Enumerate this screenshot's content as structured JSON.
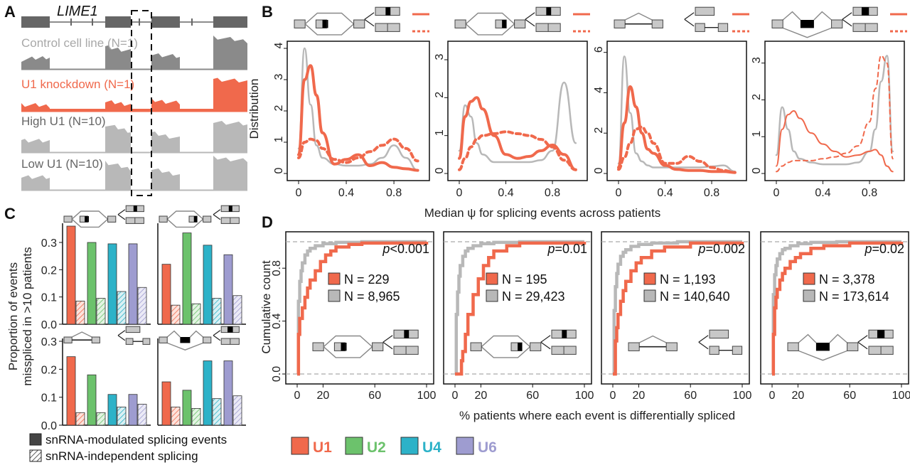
{
  "panels": {
    "A": "A",
    "B": "B",
    "C": "C",
    "D": "D"
  },
  "colors": {
    "U1": "#f0694c",
    "U2": "#6cc26c",
    "U4": "#2db2c8",
    "U6": "#9e9cd0",
    "gray_light": "#b8b8b8",
    "gray_dark": "#8a8a8a",
    "exon": "#666666"
  },
  "panelA": {
    "gene": "LIME1",
    "tracks": [
      {
        "label": "Control cell line (N=1)",
        "color": "#8a8a8a",
        "text_color": "#a8a8a8"
      },
      {
        "label": "U1 knockdown (N=1)",
        "color": "#f0694c",
        "text_color": "#f0694c"
      },
      {
        "label": "High U1 (N=10)",
        "color": "#b8b8b8",
        "text_color": "#666666"
      },
      {
        "label": "Low U1 (N=10)",
        "color": "#b8b8b8",
        "text_color": "#666666"
      }
    ]
  },
  "panelB": {
    "xlabel": "Median ψ for splicing events across patients",
    "ylabel": "Distribution",
    "xticks": [
      "0",
      "0.4",
      "0.8"
    ],
    "event_types": [
      "cassette-exon",
      "alt-5prime-site",
      "retained-intron",
      "mutually-exclusive"
    ]
  },
  "panelC": {
    "ylabel_line1": "Proportion of events",
    "ylabel_line2": "misspliced in >10 patients",
    "legend": [
      "snRNA-modulated splicing events",
      "snRNA-independent splicing"
    ]
  },
  "panelD": {
    "xlabel": "% patients where each event is differentially spliced",
    "ylabel": "Cumulative count",
    "xticks": [
      "0",
      "20",
      "60",
      "100"
    ],
    "yticks": [
      "0.0",
      "0.4",
      "0.8"
    ]
  },
  "snrna_legend": [
    "U1",
    "U2",
    "U4",
    "U6"
  ],
  "chart_data": [
    {
      "type": "line",
      "panel": "B1",
      "x": [
        0,
        0.05,
        0.1,
        0.15,
        0.2,
        0.3,
        0.4,
        0.5,
        0.6,
        0.7,
        0.8,
        0.9,
        1.0
      ],
      "ylim": [
        0,
        4
      ],
      "yticks": [
        "0",
        "1",
        "2",
        "3",
        "4"
      ],
      "series": [
        {
          "style": "gray",
          "values": [
            0.8,
            4.0,
            2.2,
            0.9,
            0.5,
            0.3,
            0.25,
            0.25,
            0.3,
            0.5,
            0.9,
            0.5,
            0.1
          ]
        },
        {
          "style": "solid",
          "values": [
            0.6,
            3.0,
            3.45,
            2.5,
            1.3,
            0.3,
            0.45,
            0.6,
            0.25,
            0.35,
            0.2,
            0.15,
            0.1
          ]
        },
        {
          "style": "dashed",
          "values": [
            0.5,
            1.0,
            1.1,
            1.05,
            0.8,
            0.45,
            0.35,
            0.5,
            0.7,
            0.9,
            1.1,
            0.8,
            0.4
          ]
        }
      ]
    },
    {
      "type": "line",
      "panel": "B2",
      "x": [
        0,
        0.05,
        0.1,
        0.15,
        0.2,
        0.3,
        0.4,
        0.5,
        0.6,
        0.7,
        0.8,
        0.9,
        1.0
      ],
      "ylim": [
        0,
        3.3
      ],
      "yticks": [
        "0",
        "1",
        "2",
        "3"
      ],
      "series": [
        {
          "style": "gray",
          "values": [
            0.6,
            1.8,
            1.5,
            0.8,
            0.5,
            0.3,
            0.3,
            0.3,
            0.3,
            0.35,
            0.6,
            2.4,
            0.8
          ]
        },
        {
          "style": "solid",
          "values": [
            0.4,
            1.5,
            1.9,
            2.0,
            1.7,
            1.0,
            0.5,
            0.4,
            0.45,
            0.6,
            0.75,
            0.5,
            0.1
          ]
        },
        {
          "style": "dashed",
          "values": [
            0.1,
            0.4,
            0.7,
            0.9,
            1.0,
            1.05,
            1.1,
            1.05,
            1.0,
            0.9,
            0.7,
            0.35,
            0.1
          ]
        }
      ]
    },
    {
      "type": "line",
      "panel": "B3",
      "x": [
        0,
        0.05,
        0.1,
        0.15,
        0.2,
        0.25,
        0.3,
        0.4,
        0.5,
        0.6,
        0.7,
        0.8,
        0.9,
        1.0
      ],
      "ylim": [
        0,
        6.2
      ],
      "yticks": [
        "0",
        "2",
        "4",
        "6"
      ],
      "series": [
        {
          "style": "gray",
          "values": [
            0.5,
            5.8,
            3.0,
            1.0,
            0.6,
            0.4,
            0.3,
            0.3,
            0.3,
            0.3,
            0.3,
            0.35,
            0.4,
            0.1
          ]
        },
        {
          "style": "solid",
          "values": [
            0.3,
            2.5,
            4.3,
            3.3,
            2.0,
            1.2,
            1.0,
            0.4,
            0.2,
            0.15,
            0.15,
            0.1,
            0.1,
            0.05
          ]
        },
        {
          "style": "dashed",
          "values": [
            0.2,
            0.8,
            1.5,
            2.2,
            2.3,
            2.0,
            1.5,
            0.5,
            0.5,
            0.85,
            0.6,
            0.3,
            0.15,
            0.05
          ]
        }
      ]
    },
    {
      "type": "line",
      "panel": "B4",
      "x": [
        0,
        0.05,
        0.1,
        0.15,
        0.2,
        0.3,
        0.4,
        0.5,
        0.6,
        0.7,
        0.8,
        0.85,
        0.9,
        0.95,
        1.0
      ],
      "ylim": [
        0,
        3.4
      ],
      "yticks": [
        "0",
        "1",
        "2",
        "3"
      ],
      "series": [
        {
          "style": "gray",
          "values": [
            0.5,
            1.8,
            1.2,
            0.6,
            0.4,
            0.3,
            0.25,
            0.25,
            0.25,
            0.3,
            0.6,
            1.2,
            2.5,
            3.2,
            0.6
          ]
        },
        {
          "style": "solid",
          "values": [
            0.2,
            1.2,
            1.6,
            1.7,
            1.5,
            1.1,
            0.8,
            0.6,
            0.45,
            0.5,
            0.6,
            0.65,
            0.5,
            0.2,
            0.05
          ]
        },
        {
          "style": "dashed",
          "values": [
            0.05,
            0.2,
            0.3,
            0.35,
            0.35,
            0.35,
            0.4,
            0.45,
            0.55,
            0.75,
            1.4,
            2.3,
            3.2,
            3.0,
            0.4
          ]
        }
      ]
    },
    {
      "type": "bar",
      "panel": "C1",
      "categories": [
        "U1",
        "U2",
        "U4",
        "U6"
      ],
      "ylim": [
        0,
        0.36
      ],
      "yticks": [
        "0.0",
        "0.1",
        "0.2",
        "0.3"
      ],
      "series": [
        {
          "name": "snRNA-modulated splicing events",
          "values": [
            0.36,
            0.3,
            0.295,
            0.295
          ]
        },
        {
          "name": "snRNA-independent splicing",
          "values": [
            0.085,
            0.095,
            0.12,
            0.135
          ]
        }
      ]
    },
    {
      "type": "bar",
      "panel": "C2",
      "categories": [
        "U1",
        "U2",
        "U4",
        "U6"
      ],
      "ylim": [
        0,
        0.36
      ],
      "series": [
        {
          "name": "snRNA-modulated splicing events",
          "values": [
            0.22,
            0.335,
            0.29,
            0.255
          ]
        },
        {
          "name": "snRNA-independent splicing",
          "values": [
            0.07,
            0.075,
            0.095,
            0.105
          ]
        }
      ]
    },
    {
      "type": "bar",
      "panel": "C3",
      "categories": [
        "U1",
        "U2",
        "U4",
        "U6"
      ],
      "ylim": [
        0,
        0.3
      ],
      "yticks": [
        "0.0",
        "0.1",
        "0.2",
        "0.3"
      ],
      "series": [
        {
          "name": "snRNA-modulated splicing events",
          "values": [
            0.245,
            0.18,
            0.11,
            0.11
          ]
        },
        {
          "name": "snRNA-independent splicing",
          "values": [
            0.045,
            0.045,
            0.065,
            0.075
          ]
        }
      ]
    },
    {
      "type": "bar",
      "panel": "C4",
      "categories": [
        "U1",
        "U2",
        "U4",
        "U6"
      ],
      "ylim": [
        0,
        0.3
      ],
      "series": [
        {
          "name": "snRNA-modulated splicing events",
          "values": [
            0.155,
            0.125,
            0.23,
            0.23
          ]
        },
        {
          "name": "snRNA-independent splicing",
          "values": [
            0.065,
            0.06,
            0.095,
            0.105
          ]
        }
      ]
    },
    {
      "type": "line",
      "panel": "D1",
      "pvalue": "p<0.001",
      "xlim": [
        0,
        100
      ],
      "ylim": [
        0,
        1
      ],
      "series": [
        {
          "name": "N = 229",
          "color": "U1",
          "x": [
            0,
            1,
            2,
            4,
            6,
            8,
            10,
            14,
            18,
            22,
            26,
            30,
            40,
            50,
            100
          ],
          "values": [
            0,
            0.3,
            0.42,
            0.5,
            0.58,
            0.65,
            0.71,
            0.78,
            0.85,
            0.9,
            0.93,
            0.96,
            0.98,
            0.99,
            1.0
          ]
        },
        {
          "name": "N = 8,965",
          "color": "gray",
          "x": [
            0,
            1,
            2,
            3,
            4,
            6,
            8,
            10,
            14,
            20,
            30,
            50,
            100
          ],
          "values": [
            0,
            0.55,
            0.7,
            0.78,
            0.84,
            0.9,
            0.93,
            0.95,
            0.97,
            0.985,
            0.995,
            1.0,
            1.0
          ]
        }
      ]
    },
    {
      "type": "line",
      "panel": "D2",
      "pvalue": "p=0.01",
      "xlim": [
        0,
        100
      ],
      "ylim": [
        0,
        1
      ],
      "series": [
        {
          "name": "N = 195",
          "color": "U1",
          "x": [
            0,
            5,
            6,
            8,
            10,
            14,
            18,
            22,
            26,
            30,
            40,
            50,
            100
          ],
          "values": [
            0,
            0.1,
            0.17,
            0.3,
            0.45,
            0.6,
            0.72,
            0.82,
            0.88,
            0.93,
            0.97,
            0.99,
            1.0
          ]
        },
        {
          "name": "N = 29,423",
          "color": "gray",
          "x": [
            0,
            1,
            2,
            3,
            4,
            6,
            8,
            10,
            14,
            20,
            30,
            50,
            100
          ],
          "values": [
            0,
            0.45,
            0.62,
            0.74,
            0.82,
            0.89,
            0.93,
            0.95,
            0.97,
            0.985,
            0.995,
            1.0,
            1.0
          ]
        }
      ]
    },
    {
      "type": "line",
      "panel": "D3",
      "pvalue": "p=0.002",
      "xlim": [
        0,
        100
      ],
      "ylim": [
        0,
        1
      ],
      "series": [
        {
          "name": "N = 1,193",
          "color": "U1",
          "x": [
            0,
            2,
            3,
            4,
            6,
            8,
            10,
            14,
            18,
            22,
            30,
            40,
            60,
            100
          ],
          "values": [
            0,
            0.25,
            0.35,
            0.45,
            0.55,
            0.63,
            0.7,
            0.78,
            0.84,
            0.88,
            0.93,
            0.96,
            0.99,
            1.0
          ]
        },
        {
          "name": "N = 140,640",
          "color": "gray",
          "x": [
            0,
            1,
            2,
            3,
            4,
            6,
            8,
            10,
            14,
            20,
            30,
            50,
            100
          ],
          "values": [
            0,
            0.48,
            0.66,
            0.76,
            0.83,
            0.89,
            0.92,
            0.94,
            0.965,
            0.98,
            0.99,
            1.0,
            1.0
          ]
        }
      ]
    },
    {
      "type": "line",
      "panel": "D4",
      "pvalue": "p=0.02",
      "xlim": [
        0,
        100
      ],
      "ylim": [
        0,
        1
      ],
      "series": [
        {
          "name": "N = 3,378",
          "color": "U1",
          "x": [
            0,
            1,
            2,
            3,
            4,
            6,
            8,
            10,
            14,
            18,
            22,
            30,
            40,
            60,
            100
          ],
          "values": [
            0,
            0.3,
            0.5,
            0.58,
            0.64,
            0.71,
            0.76,
            0.8,
            0.85,
            0.88,
            0.91,
            0.95,
            0.97,
            0.99,
            1.0
          ]
        },
        {
          "name": "N = 173,614",
          "color": "gray",
          "x": [
            0,
            1,
            2,
            3,
            4,
            6,
            8,
            10,
            14,
            20,
            30,
            50,
            100
          ],
          "values": [
            0,
            0.6,
            0.75,
            0.82,
            0.87,
            0.91,
            0.94,
            0.95,
            0.97,
            0.985,
            0.995,
            1.0,
            1.0
          ]
        }
      ]
    }
  ]
}
